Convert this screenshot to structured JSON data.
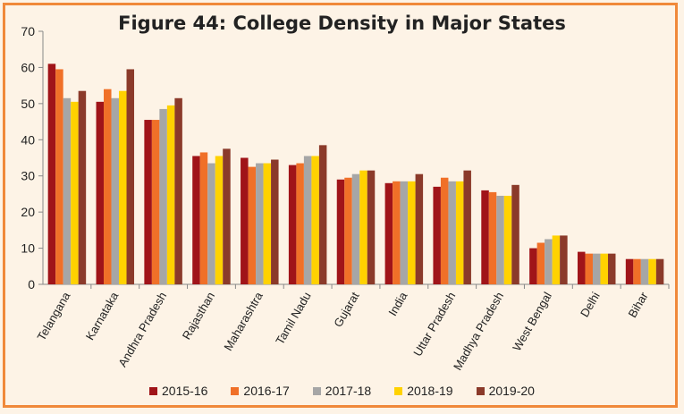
{
  "chart_data": {
    "type": "bar",
    "title": "Figure 44: College Density in Major States",
    "xlabel": "",
    "ylabel": "",
    "ylim": [
      0,
      70
    ],
    "yticks": [
      0,
      10,
      20,
      30,
      40,
      50,
      60,
      70
    ],
    "grid": false,
    "legend": "bottom",
    "categories": [
      "Telangana",
      "Karnataka",
      "Andhra Pradesh",
      "Rajasthan",
      "Maharashtra",
      "Tamil Nadu",
      "Gujarat",
      "India",
      "Uttar Pradesh",
      "Madhya Pradesh",
      "West Bengal",
      "Delhi",
      "Bihar"
    ],
    "series": [
      {
        "name": "2015-16",
        "color": "#a01419",
        "values": [
          61,
          50.5,
          45.5,
          35.5,
          35,
          33,
          29,
          28,
          27,
          26,
          10,
          9,
          7
        ]
      },
      {
        "name": "2016-17",
        "color": "#f07028",
        "values": [
          59.5,
          54,
          45.5,
          36.5,
          32.5,
          33.5,
          29.5,
          28.5,
          29.5,
          25.5,
          11.5,
          8.5,
          7
        ]
      },
      {
        "name": "2017-18",
        "color": "#a6a6a6",
        "values": [
          51.5,
          51.5,
          48.5,
          33.5,
          33.5,
          35.5,
          30.5,
          28.5,
          28.5,
          24.5,
          12.5,
          8.5,
          7
        ]
      },
      {
        "name": "2018-19",
        "color": "#ffd200",
        "values": [
          50.5,
          53.5,
          49.5,
          35.5,
          33.5,
          35.5,
          31.5,
          28.5,
          28.5,
          24.5,
          13.5,
          8.5,
          7
        ]
      },
      {
        "name": "2019-20",
        "color": "#8b3a2a",
        "values": [
          53.5,
          59.5,
          51.5,
          37.5,
          34.5,
          38.5,
          31.5,
          30.5,
          31.5,
          27.5,
          13.5,
          8.5,
          7
        ]
      }
    ]
  }
}
